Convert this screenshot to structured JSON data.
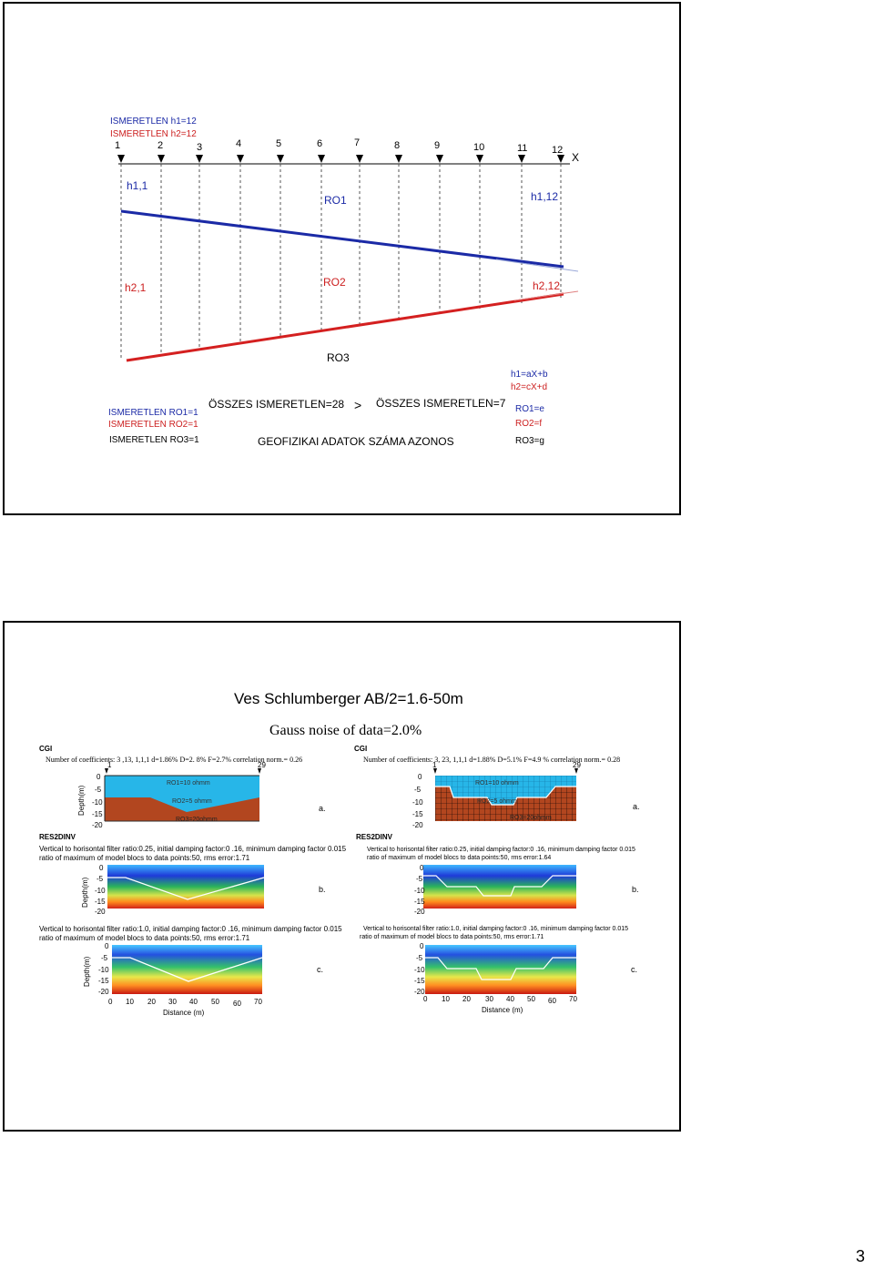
{
  "slide1": {
    "positions": [
      "1",
      "2",
      "3",
      "4",
      "5",
      "6",
      "7",
      "8",
      "9",
      "10",
      "11",
      "12"
    ],
    "x_axis": "X",
    "h1_1": "h1,1",
    "h1_12": "h1,12",
    "ro1": "RO1",
    "h2_1": "h2,1",
    "h2_12": "h2,12",
    "ro2": "RO2",
    "ro3": "RO3",
    "unknowns": [
      "ISMERETLEN h1=12",
      "ISMERETLEN h2=12",
      "ISMERETLEN RO1=1",
      "ISMERETLEN RO2=1",
      "ISMERETLEN RO3=1"
    ],
    "total_left": "ÖSSZES ISMERETLEN=28",
    "gt": ">",
    "total_right": "ÖSSZES ISMERETLEN=7",
    "same_data": "GEOFIZIKAI ADATOK SZÁMA AZONOS",
    "formulas": [
      "h1=aX+b",
      "h2=cX+d",
      "RO1=e",
      "RO2=f",
      "RO3=g"
    ]
  },
  "slide2": {
    "title": "Ves Schlumberger AB/2=1.6-50m",
    "subtitle": "Gauss noise of data=2.0%",
    "left": {
      "cgi": "CGI",
      "coeff": "Number of coefficients: 3 ,13, 1,1,1    d=1.86%    D=2. 8%  F=2.7%   correlation norm.= 0.26",
      "ro_labels": [
        "RO1=10 ohmm",
        "RO2=5 ohmm",
        "RO3=20ohmm"
      ],
      "res2dinv": "RES2DINV",
      "b_caption": [
        "Vertical to horisontal filter ratio:0.25, initial damping factor:0 .16, minimum damping factor 0.015",
        "ratio of maximum of model blocs to data points:50,  rms error:1.71"
      ],
      "c_caption": [
        "Vertical to horisontal filter ratio:1.0, initial damping factor:0 .16, minimum damping factor 0.015",
        "ratio of maximum of model blocs to data points:50,  rms error:1.71"
      ],
      "rms": "rms error:1.71"
    },
    "right": {
      "cgi": "CGI",
      "coeff": "Number of coefficients: 3, 23, 1,1,1    d=1.88%    D=5.1%  F=4.9 %  correlation norm.= 0.28",
      "ro_labels": [
        "RO1=10 ohmm",
        "RO2=5 ohmm",
        "RO3=20ohmm"
      ],
      "res2dinv": "RES2DINV",
      "b_caption": [
        "Vertical to horisontal filter ratio:0.25, initial damping factor:0 .16, minimum damping factor 0.015",
        "ratio of maximum of model blocs to data points:50,  rms error:1.64"
      ],
      "c_caption": [
        "Vertical to horisontal filter ratio:1.0, initial damping factor:0 .16, minimum damping factor 0.015",
        "ratio of maximum of model blocs to data points:50,  rms error:1.71"
      ]
    },
    "labels": {
      "a": "a.",
      "b": "b.",
      "c": "c."
    },
    "depth": "Depth(m)",
    "depth_ticks": [
      "0",
      "-5",
      "-10",
      "-15",
      "-20"
    ],
    "dist_ticks": [
      "0",
      "10",
      "20",
      "30",
      "40",
      "50",
      "60",
      "70"
    ],
    "distance": "Distance (m)",
    "markers": [
      "1",
      "29"
    ]
  },
  "page_number": "3"
}
